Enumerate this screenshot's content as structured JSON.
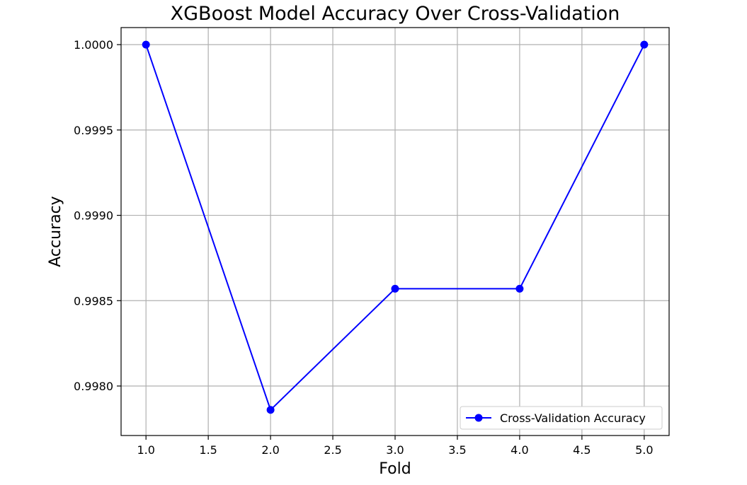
{
  "chart_data": {
    "type": "line",
    "title": "XGBoost Model Accuracy Over Cross-Validation",
    "xlabel": "Fold",
    "ylabel": "Accuracy",
    "x": [
      1,
      2,
      3,
      4,
      5
    ],
    "series": [
      {
        "name": "Cross-Validation Accuracy",
        "values": [
          1.0,
          0.99786,
          0.99857,
          0.99857,
          1.0
        ],
        "color": "#0000ff",
        "marker": "circle"
      }
    ],
    "xlim": [
      0.8,
      5.2
    ],
    "ylim": [
      0.99771,
      1.0001
    ],
    "xticks": [
      1.0,
      1.5,
      2.0,
      2.5,
      3.0,
      3.5,
      4.0,
      4.5,
      5.0
    ],
    "xtick_labels": [
      "1.0",
      "1.5",
      "2.0",
      "2.5",
      "3.0",
      "3.5",
      "4.0",
      "4.5",
      "5.0"
    ],
    "yticks": [
      0.998,
      0.9985,
      0.999,
      0.9995,
      1.0
    ],
    "ytick_labels": [
      "0.9980",
      "0.9985",
      "0.9990",
      "0.9995",
      "1.0000"
    ],
    "grid": true,
    "legend_position": "lower-right",
    "grid_color": "#b0b0b0"
  }
}
